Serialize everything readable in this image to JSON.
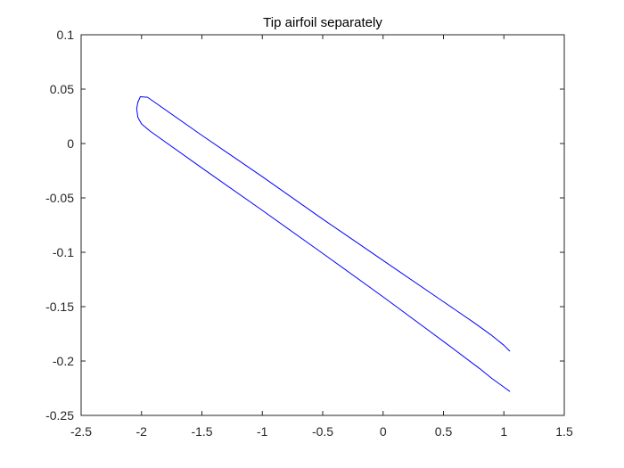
{
  "chart_data": {
    "type": "line",
    "title": "Tip airfoil separately",
    "xlabel": "",
    "ylabel": "",
    "xlim": [
      -2.5,
      1.5
    ],
    "ylim": [
      -0.25,
      0.1
    ],
    "xticks": [
      -2.5,
      -2,
      -1.5,
      -1,
      -0.5,
      0,
      0.5,
      1,
      1.5
    ],
    "xtick_labels": [
      "-2.5",
      "-2",
      "-1.5",
      "-1",
      "-0.5",
      "0",
      "0.5",
      "1",
      "1.5"
    ],
    "yticks": [
      0.1,
      0.05,
      0,
      -0.05,
      -0.1,
      -0.15,
      -0.2,
      -0.25
    ],
    "ytick_labels": [
      "0.1",
      "0.05",
      "0",
      "-0.05",
      "-0.1",
      "-0.15",
      "-0.2",
      "-0.25"
    ],
    "grid": false,
    "legend": "none",
    "line_color": "#0000ff",
    "axis_color": "#262626",
    "series": [
      {
        "x": [
          1.05,
          1.0,
          0.9,
          0.8,
          0.5,
          0.0,
          -0.5,
          -1.0,
          -1.5,
          -1.93,
          -2.0,
          -2.03,
          -2.04,
          -2.03,
          -2.01,
          -1.95,
          -1.5,
          -1.0,
          -0.5,
          0.0,
          0.5,
          0.75,
          0.9,
          1.0,
          1.05
        ],
        "y": [
          -0.228,
          -0.224,
          -0.216,
          -0.207,
          -0.182,
          -0.141,
          -0.101,
          -0.0615,
          -0.0225,
          0.0115,
          0.018,
          0.024,
          0.032,
          0.038,
          0.043,
          0.0425,
          0.0075,
          -0.0305,
          -0.0695,
          -0.1075,
          -0.1455,
          -0.1645,
          -0.1765,
          -0.1855,
          -0.191
        ]
      }
    ]
  }
}
